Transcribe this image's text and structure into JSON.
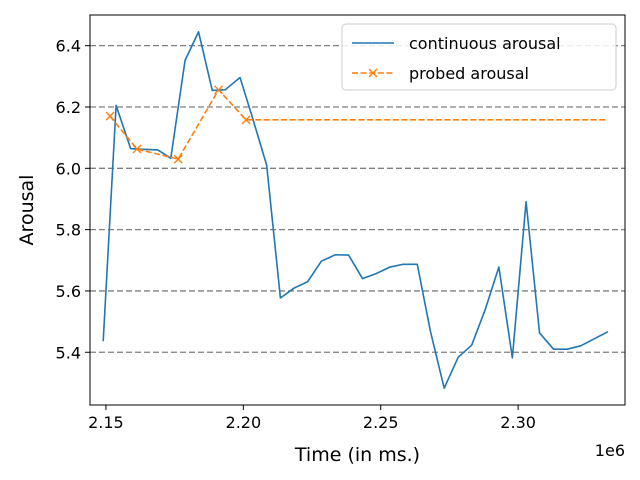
{
  "chart_data": {
    "type": "line",
    "xlabel": "Time (in ms.)",
    "ylabel": "Arousal",
    "x_offset_label": "1e6",
    "xlim": [
      2.1442,
      2.3389
    ],
    "ylim": [
      5.228,
      6.5
    ],
    "x_ticks": [
      2.15,
      2.2,
      2.25,
      2.3
    ],
    "x_tick_labels": [
      "2.15",
      "2.20",
      "2.25",
      "2.30"
    ],
    "y_ticks": [
      5.4,
      5.6,
      5.8,
      6.0,
      6.2,
      6.4
    ],
    "y_tick_labels": [
      "5.4",
      "5.6",
      "5.8",
      "6.0",
      "6.2",
      "6.4"
    ],
    "grid": "horizontal dashed",
    "legend_position": "top-right",
    "series": [
      {
        "name": "continuous arousal",
        "color": "#1f77b4",
        "style": "solid",
        "points": [
          [
            2.149,
            5.436
          ],
          [
            2.1537,
            6.205
          ],
          [
            2.159,
            6.064
          ],
          [
            2.1636,
            6.062
          ],
          [
            2.1689,
            6.06
          ],
          [
            2.1736,
            6.033
          ],
          [
            2.1788,
            6.352
          ],
          [
            2.1837,
            6.445
          ],
          [
            2.1887,
            6.254
          ],
          [
            2.1934,
            6.256
          ],
          [
            2.1988,
            6.296
          ],
          [
            2.2035,
            6.16
          ],
          [
            2.2085,
            6.01
          ],
          [
            2.2135,
            5.577
          ],
          [
            2.2184,
            5.609
          ],
          [
            2.2234,
            5.63
          ],
          [
            2.2284,
            5.697
          ],
          [
            2.2335,
            5.718
          ],
          [
            2.2383,
            5.717
          ],
          [
            2.2434,
            5.64
          ],
          [
            2.2482,
            5.656
          ],
          [
            2.2534,
            5.678
          ],
          [
            2.2582,
            5.687
          ],
          [
            2.2633,
            5.687
          ],
          [
            2.2681,
            5.468
          ],
          [
            2.2731,
            5.283
          ],
          [
            2.2782,
            5.384
          ],
          [
            2.2831,
            5.423
          ],
          [
            2.2881,
            5.541
          ],
          [
            2.293,
            5.678
          ],
          [
            2.2979,
            5.382
          ],
          [
            2.3029,
            5.891
          ],
          [
            2.3078,
            5.463
          ],
          [
            2.3129,
            5.41
          ],
          [
            2.3179,
            5.41
          ],
          [
            2.3228,
            5.421
          ],
          [
            2.3327,
            5.467
          ]
        ]
      },
      {
        "name": "probed arousal",
        "color": "#ff7f0e",
        "style": "dashed",
        "marker": "x",
        "points": [
          [
            2.1515,
            6.17
          ],
          [
            2.1613,
            6.063
          ],
          [
            2.1763,
            6.03
          ],
          [
            2.191,
            6.256
          ],
          [
            2.201,
            6.158
          ],
          [
            2.3327,
            6.158
          ]
        ],
        "marker_indices": [
          0,
          1,
          2,
          3,
          4
        ]
      }
    ]
  }
}
